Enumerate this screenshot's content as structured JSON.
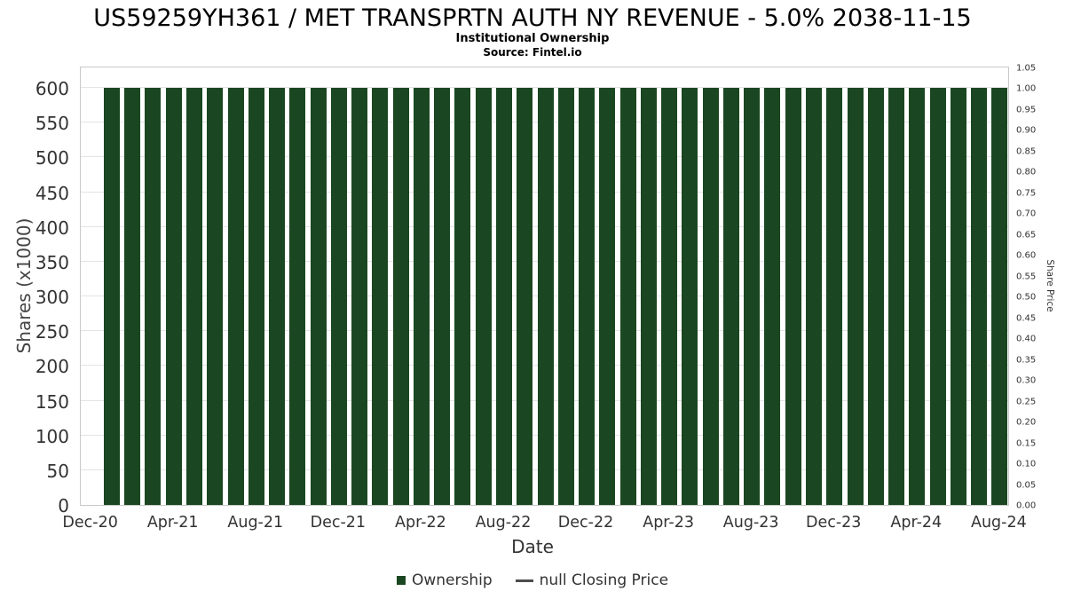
{
  "header": {
    "title": "US59259YH361 / MET TRANSPRTN AUTH NY REVENUE - 5.0% 2038-11-15",
    "subtitle": "Institutional Ownership",
    "source": "Source: Fintel.io"
  },
  "chart_data": {
    "type": "bar",
    "title": "US59259YH361 / MET TRANSPRTN AUTH NY REVENUE - 5.0% 2038-11-15",
    "subtitle": "Institutional Ownership",
    "source": "Source: Fintel.io",
    "xlabel": "Date",
    "ylabel_left": "Shares (x1000)",
    "ylabel_right": "Share Price",
    "grid": true,
    "legend_position": "bottom",
    "ylim_left": [
      0,
      632
    ],
    "ylim_right": [
      0,
      1.05
    ],
    "left_ticks": [
      0,
      50,
      100,
      150,
      200,
      250,
      300,
      350,
      400,
      450,
      500,
      550,
      600
    ],
    "right_ticks": [
      "0.00",
      "0.05",
      "0.10",
      "0.15",
      "0.20",
      "0.25",
      "0.30",
      "0.35",
      "0.40",
      "0.45",
      "0.50",
      "0.55",
      "0.60",
      "0.65",
      "0.70",
      "0.75",
      "0.80",
      "0.85",
      "0.90",
      "0.95",
      "1.00",
      "1.05"
    ],
    "months": [
      "Dec-20",
      "Jan-21",
      "Feb-21",
      "Mar-21",
      "Apr-21",
      "May-21",
      "Jun-21",
      "Jul-21",
      "Aug-21",
      "Sep-21",
      "Oct-21",
      "Nov-21",
      "Dec-21",
      "Jan-22",
      "Feb-22",
      "Mar-22",
      "Apr-22",
      "May-22",
      "Jun-22",
      "Jul-22",
      "Aug-22",
      "Sep-22",
      "Oct-22",
      "Nov-22",
      "Dec-22",
      "Jan-23",
      "Feb-23",
      "Mar-23",
      "Apr-23",
      "May-23",
      "Jun-23",
      "Jul-23",
      "Aug-23",
      "Sep-23",
      "Oct-23",
      "Nov-23",
      "Dec-23",
      "Jan-24",
      "Feb-24",
      "Mar-24",
      "Apr-24",
      "May-24",
      "Jun-24",
      "Jul-24",
      "Aug-24"
    ],
    "x_tick_indices": [
      0,
      4,
      8,
      12,
      16,
      20,
      24,
      28,
      32,
      36,
      40,
      44
    ],
    "x_tick_labels": [
      "Dec-20",
      "Apr-21",
      "Aug-21",
      "Dec-21",
      "Apr-22",
      "Aug-22",
      "Dec-22",
      "Apr-23",
      "Aug-23",
      "Dec-23",
      "Apr-24",
      "Aug-24"
    ],
    "series": [
      {
        "name": "Ownership",
        "type": "bar",
        "color": "#1a4721",
        "values": [
          0,
          600,
          600,
          600,
          600,
          600,
          600,
          600,
          600,
          600,
          600,
          600,
          600,
          600,
          600,
          600,
          600,
          600,
          600,
          600,
          600,
          600,
          600,
          600,
          600,
          600,
          600,
          600,
          600,
          600,
          600,
          600,
          600,
          600,
          600,
          600,
          600,
          600,
          600,
          600,
          600,
          600,
          600,
          600,
          600
        ]
      },
      {
        "name": "null Closing Price",
        "type": "line",
        "color": "#4d4d4d",
        "values": []
      }
    ]
  },
  "legend": {
    "items": [
      {
        "label": "Ownership",
        "swatch": "square",
        "color": "#1a4721"
      },
      {
        "label": "null Closing Price",
        "swatch": "line",
        "color": "#4d4d4d"
      }
    ]
  }
}
